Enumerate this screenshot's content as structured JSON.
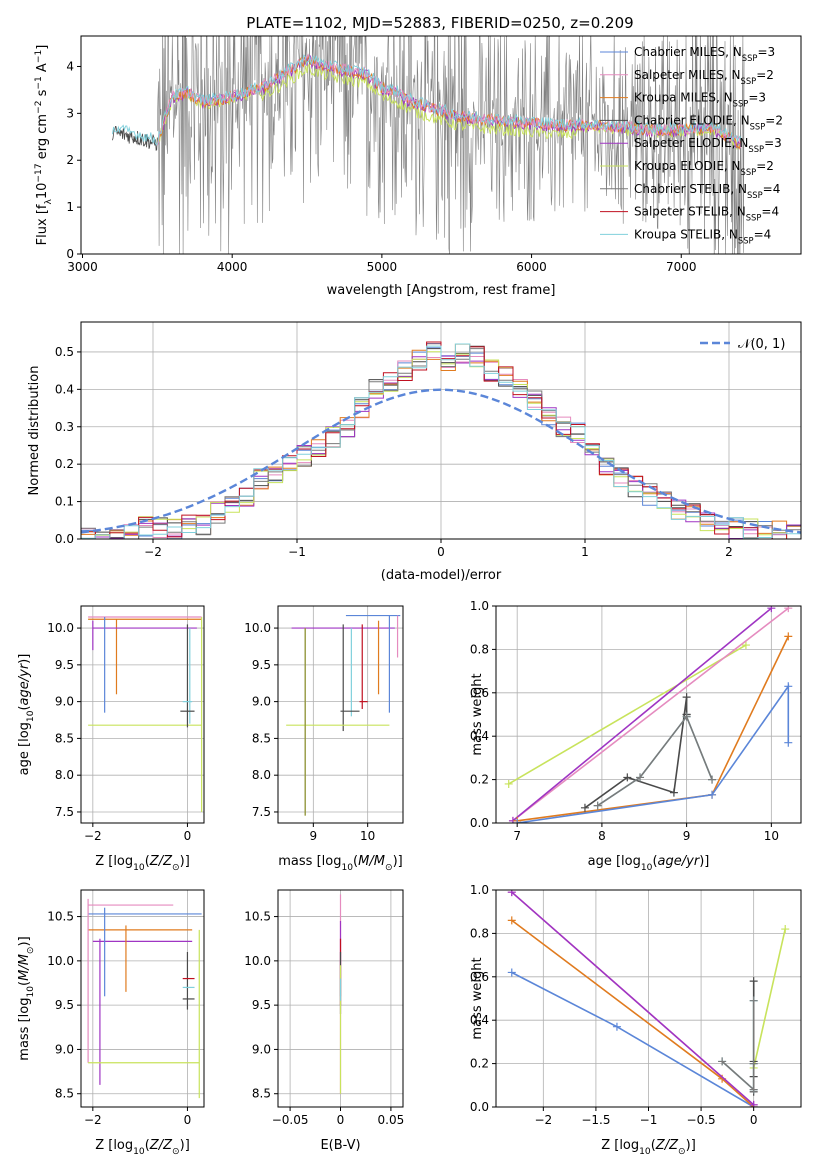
{
  "figure": {
    "title": "PLATE=1102, MJD=52883, FIBERID=0250, z=0.209"
  },
  "colors": {
    "chabrier_miles": "#5b86d8",
    "salpeter_miles": "#e58bbf",
    "kroupa_miles": "#e07b1f",
    "chabrier_elodie": "#4a4a4a",
    "salpeter_elodie": "#9f35c3",
    "kroupa_elodie": "#c8e35c",
    "chabrier_stelib": "#7a7a7a",
    "salpeter_stelib": "#c01020",
    "kroupa_stelib": "#80d0dc",
    "data": "#808080",
    "normal": "#5b86d8"
  },
  "chart_data": [
    {
      "id": "spectrum",
      "type": "line",
      "xlabel": "wavelength [Angstrom, rest frame]",
      "ylabel": "Flux [f_λ10^-17 erg cm^-2 s^-1 A^-1]",
      "xlim": [
        2990,
        7800
      ],
      "ylim": [
        0,
        4.65
      ],
      "xticks": [
        3000,
        4000,
        5000,
        6000,
        7000
      ],
      "yticks": [
        0,
        1,
        2,
        3,
        4
      ],
      "grid": false,
      "legend": "upper right",
      "legend_entries": [
        {
          "label": "Chabrier MILES",
          "nssp": "3",
          "color_key": "chabrier_miles"
        },
        {
          "label": "Salpeter MILES",
          "nssp": "2",
          "color_key": "salpeter_miles"
        },
        {
          "label": "Kroupa MILES",
          "nssp": "3",
          "color_key": "kroupa_miles"
        },
        {
          "label": "Chabrier ELODIE",
          "nssp": "2",
          "color_key": "chabrier_elodie"
        },
        {
          "label": "Salpeter ELODIE",
          "nssp": "3",
          "color_key": "salpeter_elodie"
        },
        {
          "label": "Kroupa ELODIE",
          "nssp": "2",
          "color_key": "kroupa_elodie"
        },
        {
          "label": "Chabrier STELIB",
          "nssp": "4",
          "color_key": "chabrier_stelib"
        },
        {
          "label": "Salpeter STELIB",
          "nssp": "4",
          "color_key": "salpeter_stelib"
        },
        {
          "label": "Kroupa STELIB",
          "nssp": "4",
          "color_key": "kroupa_stelib"
        }
      ],
      "model_continuum": {
        "x": [
          3200,
          3350,
          3500,
          3600,
          3700,
          3800,
          3900,
          4000,
          4100,
          4200,
          4300,
          4400,
          4500,
          4600,
          4700,
          4800,
          4900,
          5000,
          5100,
          5200,
          5300,
          5400,
          5500,
          5600,
          5800,
          6000,
          6200,
          6400,
          6600,
          6800,
          7000,
          7200,
          7400
        ],
        "y": [
          2.6,
          2.5,
          2.35,
          3.3,
          3.4,
          3.2,
          3.25,
          3.3,
          3.4,
          3.5,
          3.7,
          3.9,
          4.1,
          4.0,
          3.9,
          3.85,
          3.8,
          3.5,
          3.4,
          3.2,
          3.1,
          3.0,
          2.9,
          2.85,
          2.8,
          2.75,
          2.7,
          2.7,
          2.65,
          2.6,
          2.6,
          2.65,
          2.3
        ]
      }
    },
    {
      "id": "residuals",
      "type": "histogram",
      "xlabel": "(data-model)/error",
      "ylabel": "Normed distribution",
      "xlim": [
        -2.5,
        2.5
      ],
      "ylim": [
        0,
        0.58
      ],
      "xticks": [
        -2,
        -1,
        0,
        1,
        2
      ],
      "yticks": [
        0.0,
        0.1,
        0.2,
        0.3,
        0.4,
        0.5
      ],
      "grid": true,
      "legend": "upper right",
      "legend_label": "𝒩(0, 1)",
      "bin_edges_start": -2.5,
      "bin_width": 0.1,
      "base_values": [
        0.0,
        0.0,
        0.01,
        0.02,
        0.03,
        0.03,
        0.03,
        0.04,
        0.04,
        0.07,
        0.1,
        0.11,
        0.16,
        0.17,
        0.2,
        0.22,
        0.25,
        0.27,
        0.3,
        0.35,
        0.4,
        0.42,
        0.45,
        0.48,
        0.5,
        0.48,
        0.5,
        0.49,
        0.45,
        0.43,
        0.4,
        0.37,
        0.33,
        0.3,
        0.28,
        0.24,
        0.2,
        0.17,
        0.14,
        0.12,
        0.1,
        0.08,
        0.07,
        0.05,
        0.04,
        0.03,
        0.03,
        0.02,
        0.02,
        0.01
      ]
    },
    {
      "id": "age-vs-Z",
      "type": "errorbar",
      "xlabel": "Z [log10(Z/Z⊙)]",
      "ylabel": "age [log10(age/yr)]",
      "xlim": [
        -2.25,
        0.35
      ],
      "ylim": [
        7.35,
        10.3
      ],
      "xticks": [
        -2,
        0
      ],
      "yticks": [
        7.5,
        8.0,
        8.5,
        9.0,
        9.5,
        10.0
      ],
      "grid": true
    },
    {
      "id": "age-vs-mass",
      "type": "errorbar",
      "xlabel": "mass [log10(M/M⊙)]",
      "ylabel": "",
      "xlim": [
        8.35,
        10.65
      ],
      "ylim": [
        7.35,
        10.3
      ],
      "xticks": [
        9,
        10
      ],
      "yticks": [
        7.5,
        8.0,
        8.5,
        9.0,
        9.5,
        10.0
      ],
      "grid": true
    },
    {
      "id": "weight-vs-age",
      "type": "line",
      "xlabel": "age [log10(age/yr)]",
      "ylabel": "mass weight",
      "xlim": [
        6.75,
        10.35
      ],
      "ylim": [
        0,
        1.0
      ],
      "xticks": [
        7,
        8,
        9,
        10
      ],
      "yticks": [
        0.0,
        0.2,
        0.4,
        0.6,
        0.8,
        1.0
      ],
      "grid": true,
      "series": [
        {
          "color_key": "kroupa_elodie",
          "x": [
            6.9,
            9.7
          ],
          "y": [
            0.18,
            0.82
          ]
        },
        {
          "color_key": "salpeter_miles",
          "x": [
            6.95,
            10.2
          ],
          "y": [
            0.01,
            0.99
          ]
        },
        {
          "color_key": "salpeter_elodie",
          "x": [
            6.95,
            10.0
          ],
          "y": [
            0.01,
            0.99
          ]
        },
        {
          "color_key": "kroupa_miles",
          "x": [
            7.0,
            9.3,
            10.2
          ],
          "y": [
            0.01,
            0.13,
            0.86
          ]
        },
        {
          "color_key": "chabrier_miles",
          "x": [
            7.0,
            9.3,
            10.2,
            10.2
          ],
          "y": [
            0.0,
            0.13,
            0.63,
            0.37
          ]
        },
        {
          "color_key": "chabrier_elodie",
          "x": [
            7.8,
            8.3,
            8.85,
            9.0,
            9.0,
            9.0
          ],
          "y": [
            0.07,
            0.21,
            0.14,
            0.58,
            0.5,
            0.5
          ]
        },
        {
          "color_key": "kroupa_stelib",
          "x": [
            7.95,
            8.45,
            9.0,
            9.3
          ],
          "y": [
            0.08,
            0.21,
            0.49,
            0.2
          ]
        },
        {
          "color_key": "chabrier_stelib",
          "x": [
            7.95,
            8.45,
            9.0,
            9.3
          ],
          "y": [
            0.08,
            0.21,
            0.49,
            0.2
          ]
        }
      ]
    },
    {
      "id": "mass-vs-Z",
      "type": "errorbar",
      "xlabel": "Z [log10(Z/Z⊙)]",
      "ylabel": "mass [log10(M/M⊙)]",
      "xlim": [
        -2.25,
        0.35
      ],
      "ylim": [
        8.35,
        10.8
      ],
      "xticks": [
        -2,
        0
      ],
      "yticks": [
        8.5,
        9.0,
        9.5,
        10.0,
        10.5
      ],
      "grid": true
    },
    {
      "id": "mass-vs-EBV",
      "type": "errorbar",
      "xlabel": "E(B-V)",
      "ylabel": "",
      "xlim": [
        -0.062,
        0.062
      ],
      "ylim": [
        8.35,
        10.8
      ],
      "xticks": [
        -0.05,
        0.0,
        0.05
      ],
      "yticks": [
        8.5,
        9.0,
        9.5,
        10.0,
        10.5
      ],
      "grid": true
    },
    {
      "id": "weight-vs-Z",
      "type": "line",
      "xlabel": "Z [log10(Z/Z⊙)]",
      "ylabel": "mass weight",
      "xlim": [
        -2.45,
        0.45
      ],
      "ylim": [
        0,
        1.0
      ],
      "xticks": [
        -2.0,
        -1.5,
        -1.0,
        -0.5,
        0.0
      ],
      "yticks": [
        0.0,
        0.2,
        0.4,
        0.6,
        0.8,
        1.0
      ],
      "grid": true,
      "series": [
        {
          "color_key": "chabrier_miles",
          "x": [
            -2.3,
            -1.3,
            0.0
          ],
          "y": [
            0.62,
            0.37,
            0.0
          ]
        },
        {
          "color_key": "kroupa_miles",
          "x": [
            -2.3,
            -0.3,
            0.0
          ],
          "y": [
            0.86,
            0.13,
            0.0
          ]
        },
        {
          "color_key": "salpeter_miles",
          "x": [
            -2.3,
            0.0
          ],
          "y": [
            0.99,
            0.01
          ]
        },
        {
          "color_key": "salpeter_elodie",
          "x": [
            -2.3,
            0.0
          ],
          "y": [
            0.99,
            0.01
          ]
        },
        {
          "color_key": "kroupa_elodie",
          "x": [
            0.0,
            0.3
          ],
          "y": [
            0.18,
            0.82
          ]
        },
        {
          "color_key": "chabrier_elodie",
          "x": [
            0.0,
            0.0,
            0.0,
            0.0
          ],
          "y": [
            0.07,
            0.21,
            0.14,
            0.58
          ]
        },
        {
          "color_key": "kroupa_stelib",
          "x": [
            -0.3,
            0.0,
            0.0,
            0.0
          ],
          "y": [
            0.21,
            0.08,
            0.49,
            0.2
          ]
        },
        {
          "color_key": "chabrier_stelib",
          "x": [
            -0.3,
            0.0,
            0.0,
            0.0
          ],
          "y": [
            0.21,
            0.08,
            0.49,
            0.2
          ]
        }
      ]
    }
  ]
}
